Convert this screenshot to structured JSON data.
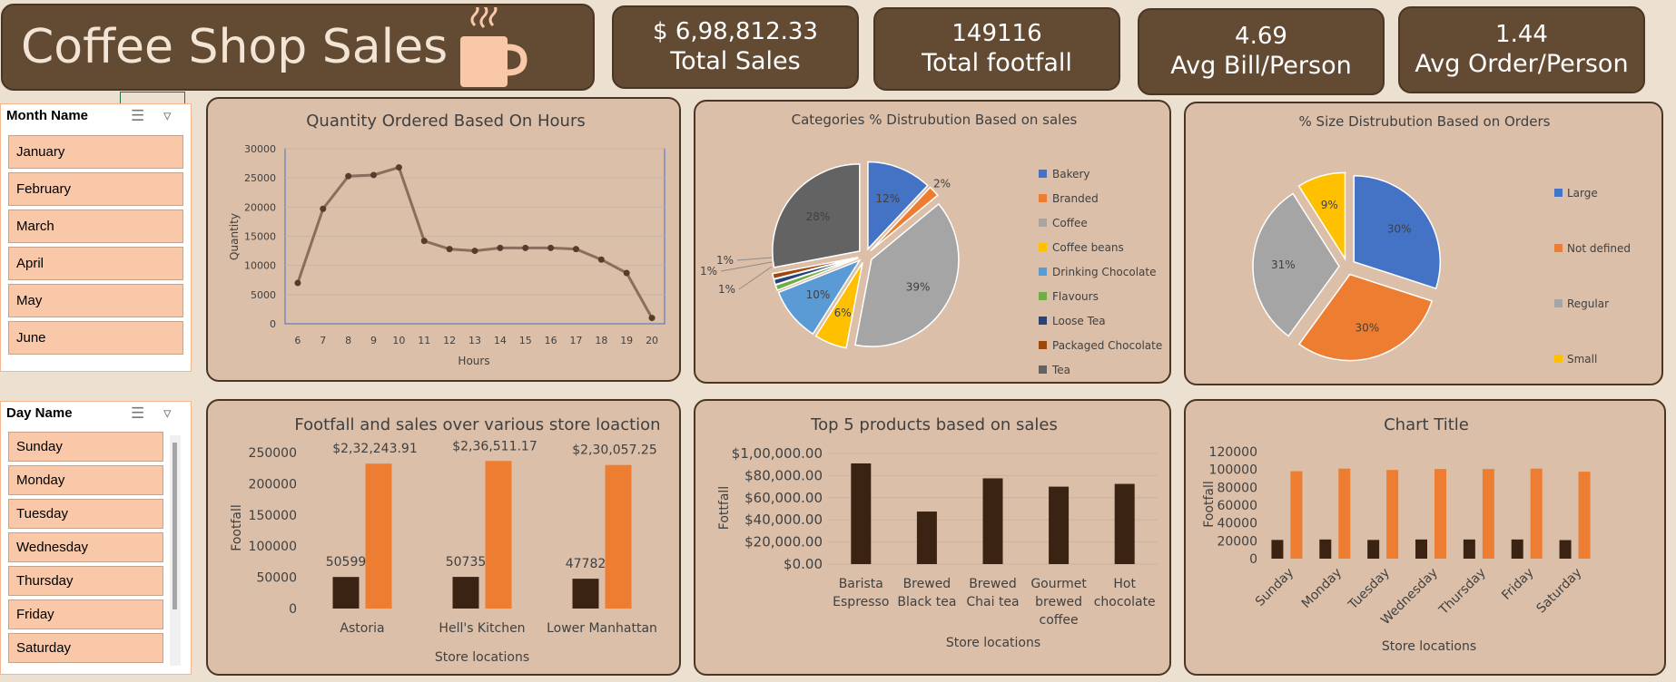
{
  "header": {
    "title": "Coffee Shop Sales",
    "icon": "coffee-mug-icon"
  },
  "kpis": [
    {
      "value": "$ 6,98,812.33",
      "label": "Total Sales"
    },
    {
      "value": "149116",
      "label": "Total footfall"
    },
    {
      "value": "4.69",
      "label": "Avg Bill/Person"
    },
    {
      "value": "1.44",
      "label": "Avg Order/Person"
    }
  ],
  "month_slicer": {
    "header": "Month Name",
    "items": [
      "January",
      "February",
      "March",
      "April",
      "May",
      "June"
    ]
  },
  "day_slicer": {
    "header": "Day Name",
    "items": [
      "Sunday",
      "Monday",
      "Tuesday",
      "Wednesday",
      "Thursday",
      "Friday",
      "Saturday"
    ]
  },
  "colors": {
    "dark_brown": "#3b2314",
    "orange": "#ed7d31",
    "line": "#8b6d5c",
    "panel": "#dbbfa9",
    "kpi": "#634a33"
  },
  "chart_data": [
    {
      "type": "line",
      "title": "Quantity Ordered Based On Hours",
      "xlabel": "Hours",
      "ylabel": "Quantity",
      "x": [
        6,
        7,
        8,
        9,
        10,
        11,
        12,
        13,
        14,
        15,
        16,
        17,
        18,
        19,
        20
      ],
      "y": [
        7000,
        19700,
        25300,
        25500,
        26800,
        14200,
        12800,
        12500,
        13000,
        13000,
        13000,
        12800,
        11000,
        8700,
        1000
      ],
      "ylim": [
        0,
        30000
      ],
      "yticks": [
        "0",
        "5000",
        "10000",
        "15000",
        "20000",
        "25000",
        "30000"
      ],
      "xticks": [
        "6",
        "7",
        "8",
        "9",
        "10",
        "11",
        "12",
        "13",
        "14",
        "15",
        "16",
        "17",
        "18",
        "19",
        "20"
      ]
    },
    {
      "type": "pie",
      "title": "Categories % Distrubution Based on sales",
      "labels": [
        "Bakery",
        "Branded",
        "Coffee",
        "Coffee beans",
        "Drinking Chocolate",
        "Flavours",
        "Loose Tea",
        "Packaged Chocolate",
        "Tea"
      ],
      "values": [
        12,
        2,
        39,
        6,
        10,
        1,
        1,
        1,
        28
      ],
      "value_labels": [
        "12%",
        "2%",
        "39%",
        "6%",
        "10%",
        "1%",
        "1%",
        "1%",
        "28%"
      ],
      "colors": [
        "#4472c4",
        "#ed7d31",
        "#a5a5a5",
        "#ffc000",
        "#5b9bd5",
        "#70ad47",
        "#264478",
        "#9e480e",
        "#636363"
      ],
      "legend": "right"
    },
    {
      "type": "pie",
      "title": "% Size Distrubution Based on Orders",
      "labels": [
        "Large",
        "Not defined",
        "Regular",
        "Small"
      ],
      "values": [
        30,
        30,
        31,
        9
      ],
      "value_labels": [
        "30%",
        "30%",
        "31%",
        "9%"
      ],
      "colors": [
        "#4472c4",
        "#ed7d31",
        "#a5a5a5",
        "#ffc000"
      ],
      "legend": "right"
    },
    {
      "type": "bar",
      "title": "Footfall and sales over various store loaction",
      "xlabel": "Store locations",
      "ylabel": "Footfall",
      "categories": [
        "Astoria",
        "Hell's Kitchen",
        "Lower Manhattan"
      ],
      "series": [
        {
          "values": [
            50599,
            50735,
            47782
          ],
          "labels": [
            "50599",
            "50735",
            "47782"
          ]
        },
        {
          "values": [
            232243.91,
            236511.17,
            230057.25
          ],
          "labels": [
            "$2,32,243.91",
            "$2,36,511.17",
            "$2,30,057.25"
          ]
        }
      ],
      "ylim": [
        0,
        250000
      ],
      "yticks": [
        "0",
        "50000",
        "100000",
        "150000",
        "200000",
        "250000"
      ]
    },
    {
      "type": "bar",
      "title": "Top 5 products based on sales",
      "xlabel": "Store locations",
      "ylabel": "Fottfall",
      "categories": [
        [
          "Barista",
          "Espresso"
        ],
        [
          "Brewed",
          "Black tea"
        ],
        [
          "Brewed",
          "Chai tea"
        ],
        [
          "Gourmet",
          "brewed",
          "coffee"
        ],
        [
          "Hot",
          "chocolate"
        ]
      ],
      "values": [
        91000,
        47500,
        77500,
        70000,
        72500
      ],
      "ylim": [
        0,
        100000
      ],
      "yticks": [
        "$0.00",
        "$20,000.00",
        "$40,000.00",
        "$60,000.00",
        "$80,000.00",
        "$1,00,000.00"
      ]
    },
    {
      "type": "bar",
      "title": "Chart Title",
      "xlabel": "Store locations",
      "ylabel": "Footfall",
      "categories": [
        "Sunday",
        "Monday",
        "Tuesday",
        "Wednesday",
        "Thursday",
        "Friday",
        "Saturday"
      ],
      "series": [
        {
          "values": [
            21000,
            21500,
            21000,
            21500,
            21500,
            21500,
            20800
          ]
        },
        {
          "values": [
            98000,
            101000,
            99500,
            100500,
            100500,
            101000,
            97500
          ]
        }
      ],
      "ylim": [
        0,
        120000
      ],
      "yticks": [
        "0",
        "20000",
        "40000",
        "60000",
        "80000",
        "100000",
        "120000"
      ]
    }
  ]
}
